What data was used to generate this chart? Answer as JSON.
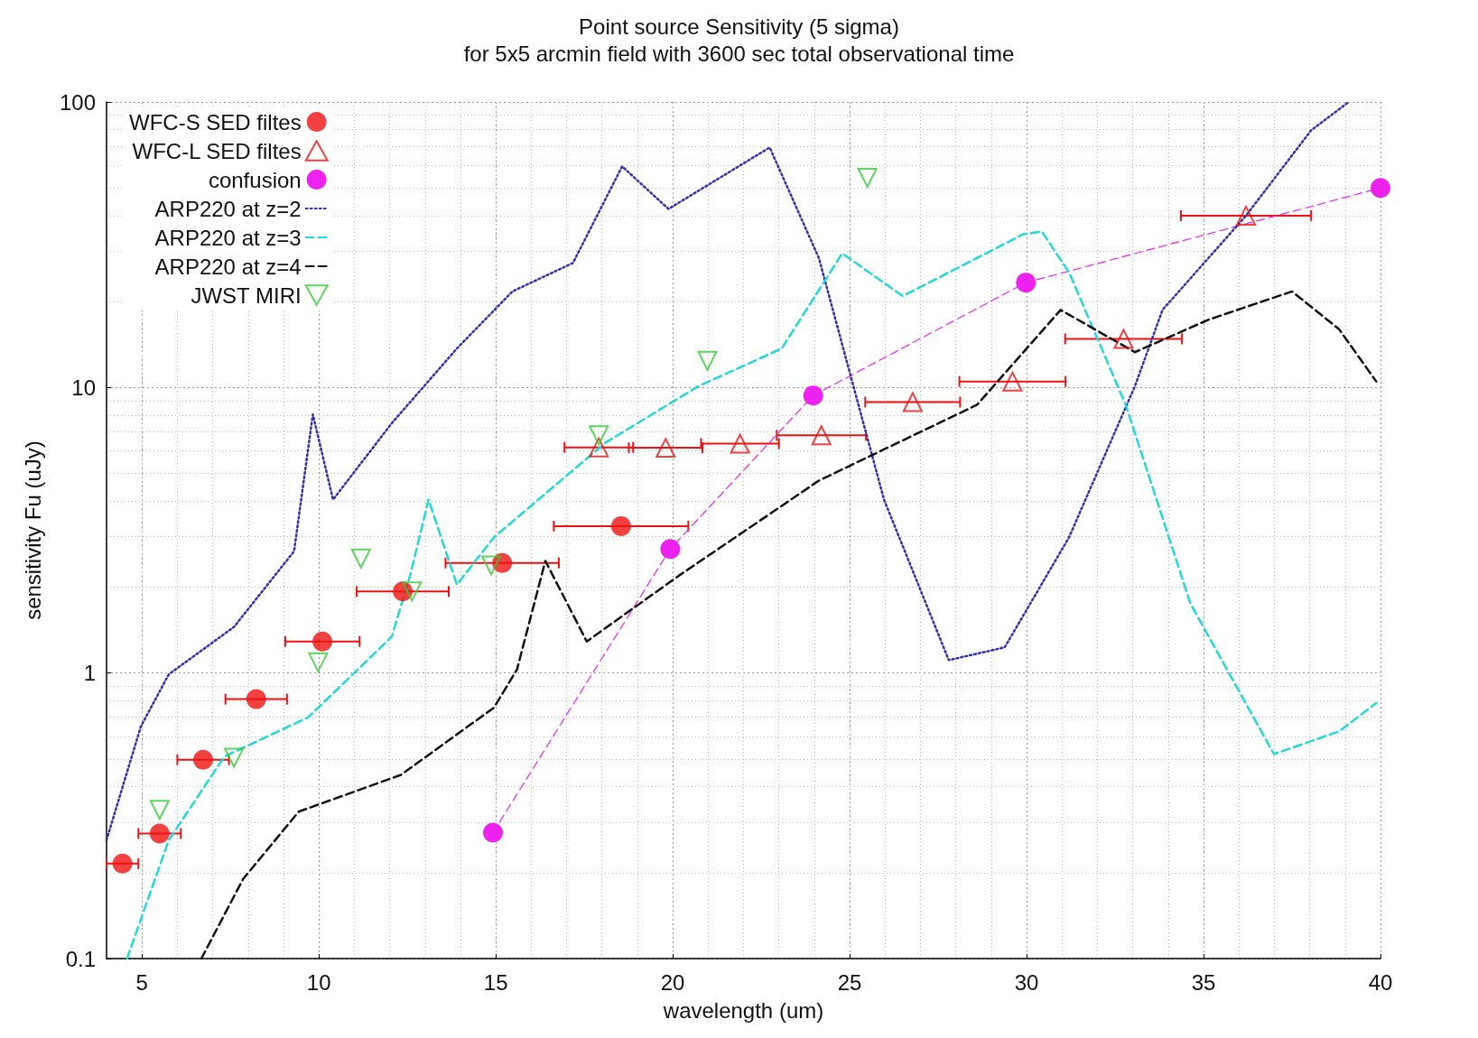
{
  "chart_data": {
    "type": "line",
    "title": "Point source Sensitivity (5 sigma)",
    "subtitle": "for 5x5 arcmin field with 3600 sec total observational time",
    "xlabel": "wavelength (um)",
    "ylabel": "sensitivity Fu (uJy)",
    "xlim": [
      4,
      40
    ],
    "xticks": [
      5,
      10,
      15,
      20,
      25,
      30,
      35,
      40
    ],
    "ylim": [
      0.1,
      100
    ],
    "yticks": [
      0.1,
      1,
      10,
      100
    ],
    "log": "y",
    "grid": true,
    "legend": "top left",
    "series": [
      {
        "name": "WFC-S SED filtes",
        "type": "scatter",
        "marker": "circle",
        "color": "#ee1111",
        "x": [
          4.45,
          5.5,
          6.73,
          8.23,
          10.1,
          12.37,
          15.18,
          18.54
        ],
        "values": [
          0.215,
          0.274,
          0.497,
          0.81,
          1.29,
          1.93,
          2.43,
          3.27
        ],
        "xerrors": [
          0.45,
          0.6,
          0.73,
          0.87,
          1.05,
          1.3,
          1.6,
          1.9
        ]
      },
      {
        "name": "WFC-L SED filtes",
        "type": "scatter",
        "marker": "triangle",
        "color": "#ee1111",
        "x": [
          17.91,
          19.8,
          21.9,
          24.2,
          26.78,
          29.6,
          32.74,
          36.2
        ],
        "values": [
          6.17,
          6.15,
          6.36,
          6.8,
          8.89,
          10.5,
          14.8,
          40
        ],
        "xerrors": [
          0.97,
          1.04,
          1.1,
          1.26,
          1.34,
          1.5,
          1.65,
          1.84
        ]
      },
      {
        "name": "confusion",
        "marker": "circle",
        "line_style": "dashed",
        "color": "#ee22ee",
        "x": [
          14.92,
          19.93,
          23.97,
          29.98,
          40
        ],
        "values": [
          0.276,
          2.72,
          9.38,
          23.3,
          50
        ]
      },
      {
        "name": "ARP220 at z=2",
        "marker": "none",
        "line_style": "dotted",
        "color": "#3030b0",
        "x": [
          4,
          4.97,
          5.76,
          7.6,
          9.3,
          9.83,
          10.4,
          12.06,
          13.9,
          15.47,
          17.18,
          18.57,
          19.88,
          22.74,
          24.13,
          25.97,
          27.8,
          29.38,
          31.2,
          33.06,
          33.84,
          36.2,
          38.04,
          39.1
        ],
        "values": [
          0.26,
          0.65,
          0.99,
          1.45,
          2.67,
          8.05,
          4.05,
          7.5,
          13.7,
          21.7,
          27.3,
          59.5,
          42.2,
          69.3,
          28.4,
          4.05,
          1.11,
          1.23,
          2.99,
          10.1,
          18.7,
          40,
          79.6,
          100
        ]
      },
      {
        "name": "ARP220 at z=3",
        "marker": "none",
        "line_style": "dashed",
        "color": "#22d8d8",
        "x": [
          4.58,
          5.76,
          7.33,
          9.7,
          12.06,
          12.58,
          13.1,
          13.9,
          14.95,
          18.1,
          20.72,
          23.08,
          24.79,
          26.5,
          29.9,
          30.43,
          31.2,
          32.8,
          34.63,
          36.99,
          38.83,
          39.88
        ],
        "values": [
          0.1,
          0.26,
          0.51,
          0.7,
          1.34,
          2.2,
          4.05,
          2.04,
          2.99,
          6.41,
          10.1,
          13.7,
          29.5,
          20.9,
          34.4,
          35.2,
          25.3,
          8.7,
          1.75,
          0.52,
          0.625,
          0.785
        ]
      },
      {
        "name": "ARP220 at z=4",
        "marker": "none",
        "line_style": "dashed",
        "color": "#111111",
        "x": [
          6.68,
          7.86,
          9.43,
          12.32,
          14.95,
          15.6,
          16.4,
          17.57,
          20.19,
          24.13,
          28.6,
          30.96,
          33.06,
          35.15,
          37.5,
          38.83,
          39.88
        ],
        "values": [
          0.1,
          0.19,
          0.327,
          0.44,
          0.757,
          1.03,
          2.47,
          1.29,
          2.2,
          4.72,
          8.7,
          18.7,
          13.3,
          17.3,
          21.7,
          16,
          10.5
        ]
      },
      {
        "name": "JWST MIRI",
        "type": "scatter",
        "marker": "triangle-down",
        "color": "#33cc33",
        "x": [
          5.5,
          7.6,
          9.98,
          11.19,
          12.63,
          14.87,
          17.91,
          20.98,
          25.5
        ],
        "values": [
          0.332,
          0.505,
          1.09,
          2.52,
          1.93,
          2.38,
          6.8,
          12.4,
          54.3
        ]
      }
    ]
  }
}
